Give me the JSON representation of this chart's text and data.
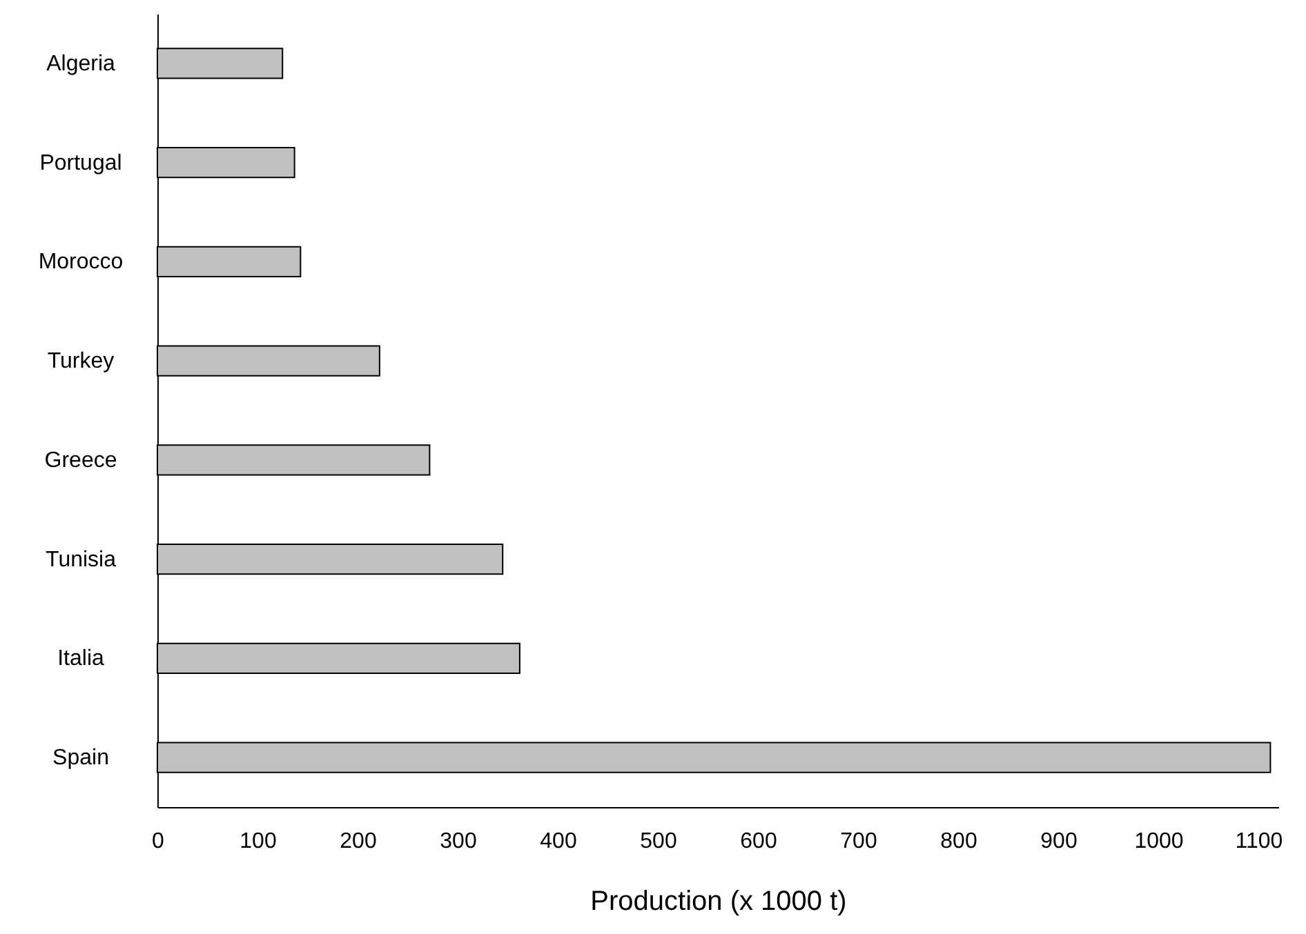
{
  "chart_data": {
    "type": "bar",
    "orientation": "horizontal",
    "categories": [
      "Algeria",
      "Portugal",
      "Morocco",
      "Turkey",
      "Greece",
      "Tunisia",
      "Italia",
      "Spain"
    ],
    "values": [
      125,
      137,
      143,
      222,
      272,
      345,
      362,
      1112
    ],
    "color": "#c0c0c0",
    "xlabel": "Production (x 1000 t)",
    "xlim": [
      0,
      1120
    ],
    "xticks": [
      0,
      100,
      200,
      300,
      400,
      500,
      600,
      700,
      800,
      900,
      1000,
      1100
    ],
    "grid": false
  }
}
